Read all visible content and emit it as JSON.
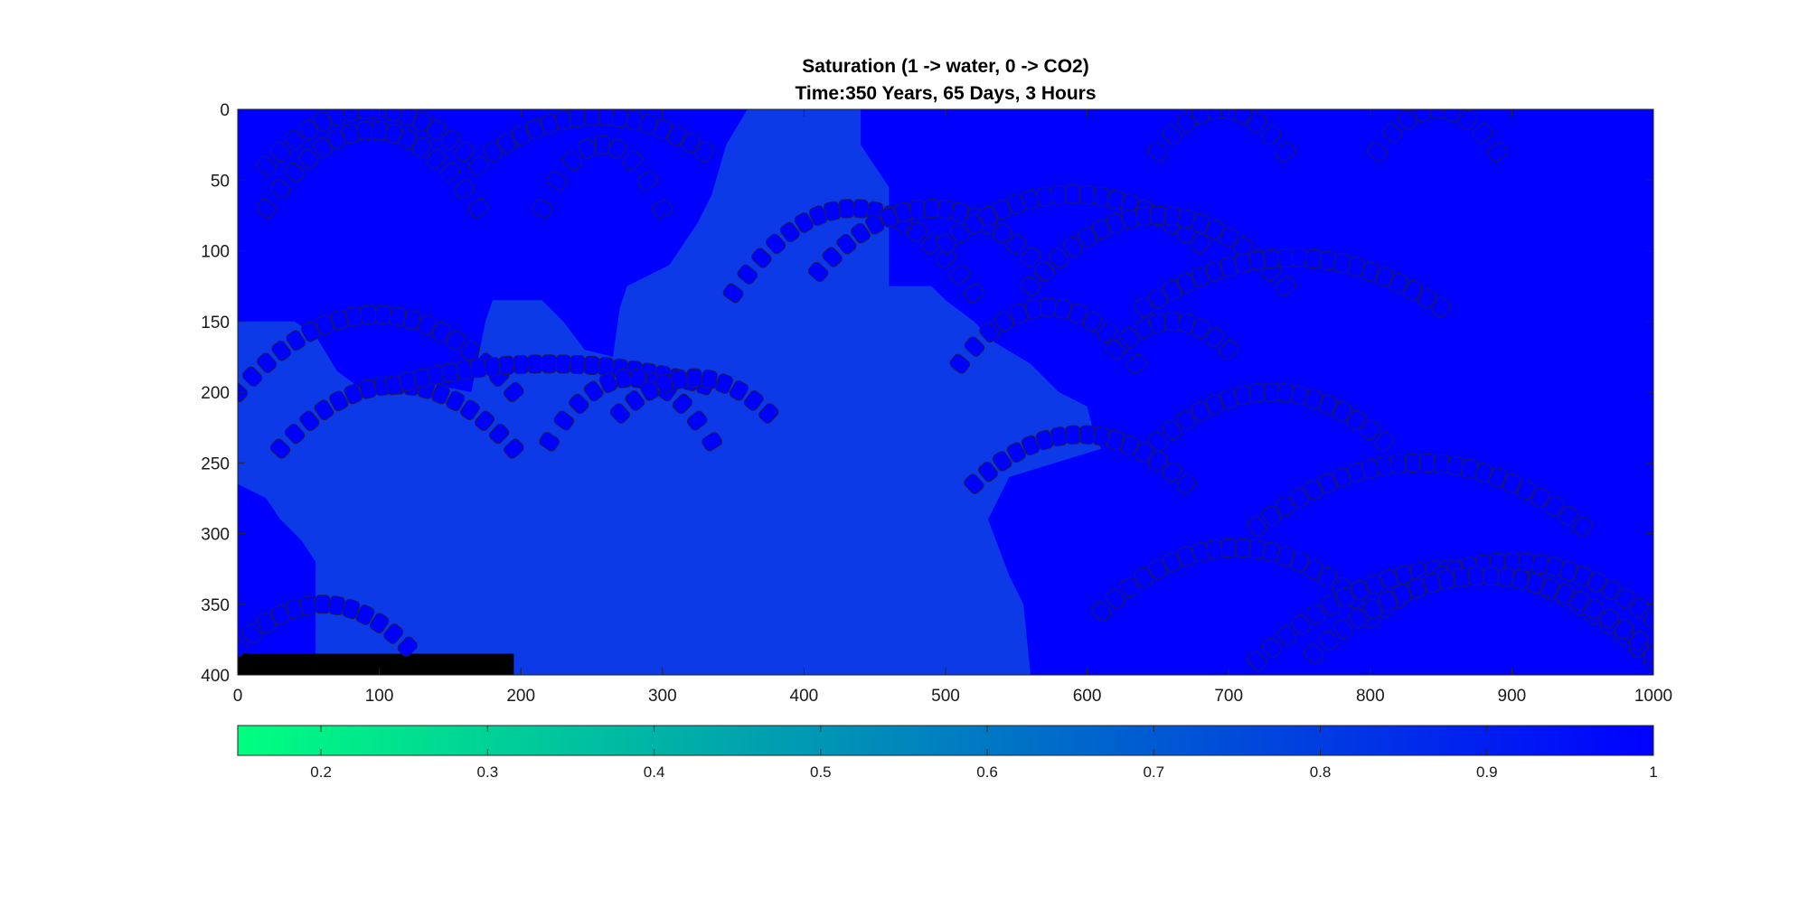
{
  "chart_data": {
    "type": "heatmap",
    "title": "Saturation (1 -> water, 0 -> CO2)",
    "subtitle": "Time:350 Years, 65 Days, 3 Hours",
    "xlabel": "",
    "ylabel": "",
    "xlim": [
      0,
      1000
    ],
    "ylim": [
      0,
      400
    ],
    "y_direction": "reversed",
    "xticks": [
      "0",
      "100",
      "200",
      "300",
      "400",
      "500",
      "600",
      "700",
      "800",
      "900",
      "1000"
    ],
    "yticks": [
      "0",
      "50",
      "100",
      "150",
      "200",
      "250",
      "300",
      "350",
      "400"
    ],
    "grid": false,
    "colormap": "winter",
    "colors": {
      "low": "#00ff80",
      "high": "#0000ff",
      "field_background": "#0000ff",
      "plume": "#0b3ae6",
      "injection_block": "#000000"
    },
    "colorbar": {
      "location": "south",
      "range": [
        0.15,
        1.0
      ],
      "ticks": [
        "0.2",
        "0.3",
        "0.4",
        "0.5",
        "0.6",
        "0.7",
        "0.8",
        "0.9",
        "1"
      ]
    },
    "field": {
      "background_saturation": 1.0,
      "plume_saturation": 0.78,
      "plume_outline": [
        [
          0,
          400
        ],
        [
          0,
          150
        ],
        [
          40,
          150
        ],
        [
          55,
          160
        ],
        [
          70,
          185
        ],
        [
          90,
          200
        ],
        [
          100,
          200
        ],
        [
          140,
          195
        ],
        [
          165,
          200
        ],
        [
          175,
          150
        ],
        [
          180,
          135
        ],
        [
          215,
          135
        ],
        [
          230,
          150
        ],
        [
          245,
          170
        ],
        [
          265,
          175
        ],
        [
          270,
          140
        ],
        [
          275,
          125
        ],
        [
          305,
          110
        ],
        [
          325,
          80
        ],
        [
          335,
          60
        ],
        [
          345,
          25
        ],
        [
          360,
          0
        ],
        [
          440,
          0
        ],
        [
          440,
          25
        ],
        [
          450,
          40
        ],
        [
          460,
          55
        ],
        [
          460,
          125
        ],
        [
          490,
          125
        ],
        [
          500,
          135
        ],
        [
          520,
          150
        ],
        [
          535,
          165
        ],
        [
          560,
          180
        ],
        [
          580,
          200
        ],
        [
          600,
          210
        ],
        [
          605,
          230
        ],
        [
          610,
          240
        ],
        [
          545,
          260
        ],
        [
          530,
          290
        ],
        [
          545,
          330
        ],
        [
          555,
          350
        ],
        [
          560,
          400
        ]
      ],
      "left_edge_cutout": [
        [
          0,
          265
        ],
        [
          20,
          275
        ],
        [
          30,
          290
        ],
        [
          45,
          305
        ],
        [
          55,
          320
        ],
        [
          55,
          400
        ],
        [
          0,
          400
        ]
      ],
      "injection_block": {
        "x": [
          0,
          195
        ],
        "y": [
          385,
          400
        ],
        "value": 0
      }
    },
    "overlay": {
      "description_free": true,
      "arcs": [
        {
          "x0": 20,
          "x1": 170,
          "y_edge": 40,
          "y_peak": 0
        },
        {
          "x0": 20,
          "x1": 170,
          "y_edge": 70,
          "y_peak": 15
        },
        {
          "x0": 180,
          "x1": 330,
          "y_edge": 30,
          "y_peak": 5
        },
        {
          "x0": 215,
          "x1": 300,
          "y_edge": 70,
          "y_peak": 25
        },
        {
          "x0": 350,
          "x1": 520,
          "y_edge": 130,
          "y_peak": 70
        },
        {
          "x0": 410,
          "x1": 570,
          "y_edge": 115,
          "y_peak": 70
        },
        {
          "x0": 500,
          "x1": 680,
          "y_edge": 95,
          "y_peak": 60
        },
        {
          "x0": 560,
          "x1": 740,
          "y_edge": 125,
          "y_peak": 75
        },
        {
          "x0": 650,
          "x1": 740,
          "y_edge": 30,
          "y_peak": 0
        },
        {
          "x0": 805,
          "x1": 890,
          "y_edge": 30,
          "y_peak": 0
        },
        {
          "x0": 640,
          "x1": 850,
          "y_edge": 140,
          "y_peak": 105
        },
        {
          "x0": 510,
          "x1": 635,
          "y_edge": 180,
          "y_peak": 140
        },
        {
          "x0": 620,
          "x1": 700,
          "y_edge": 170,
          "y_peak": 150
        },
        {
          "x0": 0,
          "x1": 195,
          "y_edge": 200,
          "y_peak": 145
        },
        {
          "x0": 30,
          "x1": 195,
          "y_edge": 240,
          "y_peak": 195
        },
        {
          "x0": 110,
          "x1": 330,
          "y_edge": 195,
          "y_peak": 180
        },
        {
          "x0": 220,
          "x1": 335,
          "y_edge": 235,
          "y_peak": 190
        },
        {
          "x0": 270,
          "x1": 375,
          "y_edge": 215,
          "y_peak": 190
        },
        {
          "x0": 520,
          "x1": 670,
          "y_edge": 265,
          "y_peak": 230
        },
        {
          "x0": 650,
          "x1": 810,
          "y_edge": 235,
          "y_peak": 200
        },
        {
          "x0": 720,
          "x1": 950,
          "y_edge": 295,
          "y_peak": 250
        },
        {
          "x0": 610,
          "x1": 800,
          "y_edge": 355,
          "y_peak": 310
        },
        {
          "x0": 720,
          "x1": 1000,
          "y_edge": 390,
          "y_peak": 325
        },
        {
          "x0": 800,
          "x1": 1000,
          "y_edge": 360,
          "y_peak": 320
        },
        {
          "x0": 760,
          "x1": 1000,
          "y_edge": 385,
          "y_peak": 330
        },
        {
          "x0": 0,
          "x1": 120,
          "y_edge": 380,
          "y_peak": 350
        }
      ]
    }
  }
}
